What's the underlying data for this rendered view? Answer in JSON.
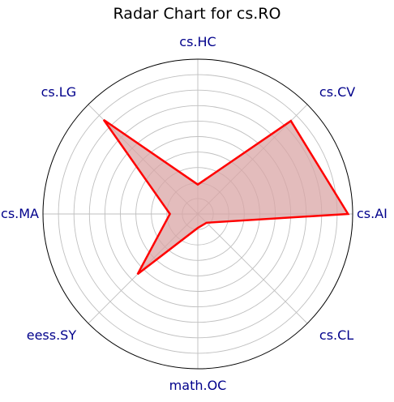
{
  "chart_data": {
    "type": "radar",
    "title": "Radar Chart for cs.RO",
    "categories": [
      "cs.AI",
      "cs.CV",
      "cs.HC",
      "cs.LG",
      "cs.MA",
      "eess.SY",
      "math.OC",
      "cs.CL"
    ],
    "values": [
      0.97,
      0.85,
      0.19,
      0.86,
      0.18,
      0.55,
      0.09,
      0.08
    ],
    "rlim": [
      0,
      1
    ],
    "grid": true,
    "ring_count": 10,
    "colors": {
      "line": "#ff0000",
      "fill": "#d9a6a6",
      "label": "#00008b",
      "grid": "#bfbfbf",
      "frame": "#000000"
    }
  }
}
